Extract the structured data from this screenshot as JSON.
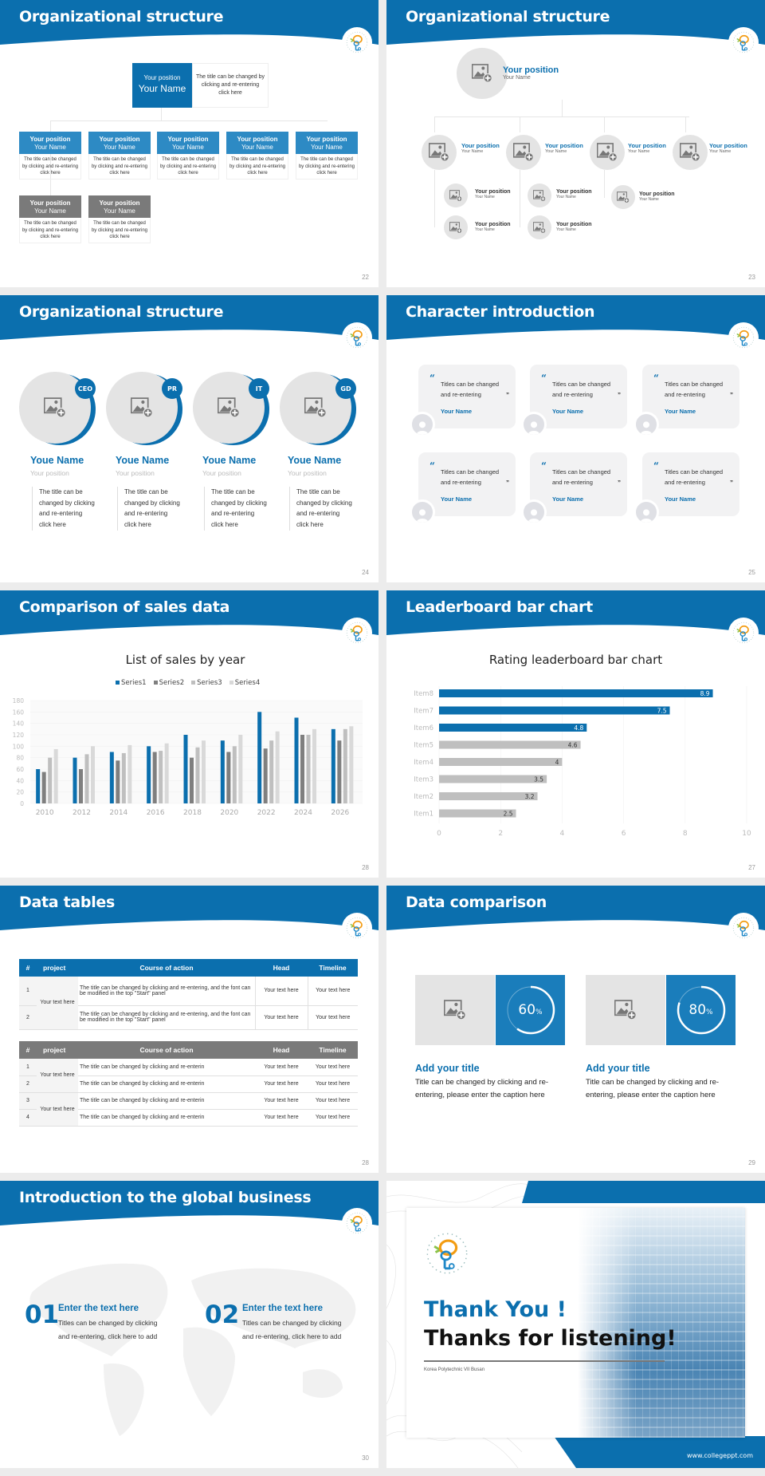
{
  "colors": {
    "brand": "#0b6fae",
    "gray_header": "#7a7a7a",
    "gray_light": "#e4e4e4"
  },
  "slides": [
    {
      "page": "22",
      "title": "Organizational structure",
      "top": {
        "position": "Your position",
        "name": "Your Name",
        "desc": "The title can be changed by clicking and re-entering click here"
      },
      "cards": [
        {
          "position": "Your position",
          "name": "Your Name",
          "desc": "The title can be changed by clicking and re-entering click here"
        },
        {
          "position": "Your position",
          "name": "Your Name",
          "desc": "The title can be changed by clicking and re-entering click here"
        },
        {
          "position": "Your position",
          "name": "Your Name",
          "desc": "The title can be changed by clicking and re-entering click here"
        },
        {
          "position": "Your position",
          "name": "Your Name",
          "desc": "The title can be changed by clicking and re-entering click here"
        },
        {
          "position": "Your position",
          "name": "Your Name",
          "desc": "The title can be changed by clicking and re-entering click here"
        },
        {
          "position": "Your position",
          "name": "Your Name",
          "desc": "The title can be changed by clicking and re-entering click here"
        },
        {
          "position": "Your position",
          "name": "Your Name",
          "desc": "The title can be changed by clicking and re-entering click here"
        }
      ]
    },
    {
      "page": "23",
      "title": "Organizational structure",
      "top": {
        "position": "Your position",
        "name": "Your Name"
      },
      "level2": [
        {
          "position": "Your position",
          "name": "Your Name"
        },
        {
          "position": "Your position",
          "name": "Your Name"
        },
        {
          "position": "Your position",
          "name": "Your Name"
        },
        {
          "position": "Your position",
          "name": "Your Name"
        }
      ],
      "level3": [
        {
          "position": "Your position",
          "name": "Your Name"
        },
        {
          "position": "Your position",
          "name": "Your Name"
        },
        {
          "position": "Your position",
          "name": "Your Name"
        },
        {
          "position": "Your position",
          "name": "Your Name"
        },
        {
          "position": "Your position",
          "name": "Your Name"
        }
      ]
    },
    {
      "page": "24",
      "title": "Organizational structure",
      "members": [
        {
          "tag": "CEO",
          "name": "Youe Name",
          "position": "Your position",
          "desc": "The title can be changed by clicking and re-entering click here"
        },
        {
          "tag": "PR",
          "name": "Youe Name",
          "position": "Your position",
          "desc": "The title can be changed by clicking and re-entering click here"
        },
        {
          "tag": "IT",
          "name": "Youe Name",
          "position": "Your position",
          "desc": "The title can be changed by clicking and re-entering click here"
        },
        {
          "tag": "GD",
          "name": "Youe Name",
          "position": "Your position",
          "desc": "The title can be changed by clicking and re-entering click here"
        }
      ]
    },
    {
      "page": "25",
      "title": "Character introduction",
      "quotes": [
        {
          "text1": "Titles can be changed",
          "text2": "and re-entering",
          "name": "Your Name"
        },
        {
          "text1": "Titles can be changed",
          "text2": "and re-entering",
          "name": "Your Name"
        },
        {
          "text1": "Titles can be changed",
          "text2": "and re-entering",
          "name": "Your Name"
        },
        {
          "text1": "Titles can be changed",
          "text2": "and re-entering",
          "name": "Your Name"
        },
        {
          "text1": "Titles can be changed",
          "text2": "and re-entering",
          "name": "Your Name"
        },
        {
          "text1": "Titles can be changed",
          "text2": "and re-entering",
          "name": "Your Name"
        }
      ]
    },
    {
      "page": "28",
      "title": "Comparison of sales data"
    },
    {
      "page": "27",
      "title": "Leaderboard bar chart"
    },
    {
      "page": "28",
      "title": "Data tables",
      "table1": {
        "headers": [
          "#",
          "project",
          "Course of action",
          "Head",
          "Timeline"
        ],
        "project": "Your text here",
        "rows": [
          {
            "num": "1",
            "action": "The title can be changed by clicking and re-entering, and the font can be modified in the top \"Start\" panel",
            "head": "Your text here",
            "timeline": "Your text here"
          },
          {
            "num": "2",
            "action": "The title can be changed by clicking and re-entering, and the font can be modified in the top \"Start\" panel",
            "head": "Your text here",
            "timeline": "Your text here"
          }
        ]
      },
      "table2": {
        "headers": [
          "#",
          "project",
          "Course of action",
          "Head",
          "Timeline"
        ],
        "projects": [
          "Your text here",
          "Your text here"
        ],
        "rows": [
          {
            "num": "1",
            "action": "The title can be changed by clicking and re-enterin",
            "head": "Your text here",
            "timeline": "Your text here"
          },
          {
            "num": "2",
            "action": "The title can be changed by clicking and re-enterin",
            "head": "Your text here",
            "timeline": "Your text here"
          },
          {
            "num": "3",
            "action": "The title can be changed by clicking and re-enterin",
            "head": "Your text here",
            "timeline": "Your text here"
          },
          {
            "num": "4",
            "action": "The title can be changed by clicking and re-enterin",
            "head": "Your text here",
            "timeline": "Your text here"
          }
        ]
      }
    },
    {
      "page": "29",
      "title": "Data comparison",
      "items": [
        {
          "percent": "60",
          "unit": "%",
          "title": "Add your title",
          "caption": "Title can be changed by clicking and re-entering, please enter the caption here"
        },
        {
          "percent": "80",
          "unit": "%",
          "title": "Add your title",
          "caption": "Title can be changed by clicking and re-entering, please enter the caption here"
        }
      ]
    },
    {
      "page": "30",
      "title": "Introduction to the global business",
      "points": [
        {
          "num": "01",
          "heading": "Enter the text here",
          "text": "Titles can be changed by clicking and re-entering, click here to add"
        },
        {
          "num": "02",
          "heading": "Enter the text here",
          "text": "Titles can be changed by clicking and re-entering, click here to add"
        }
      ]
    },
    {
      "thanks": "Thank You !",
      "listening": "Thanks for listening!",
      "org": "Korea Polytechnic VII Busan",
      "url": "www.collegeppt.com"
    }
  ],
  "chart_data": [
    {
      "type": "bar",
      "title": "List of sales by year",
      "xlabel": "",
      "ylabel": "",
      "categories": [
        "2010",
        "2012",
        "2014",
        "2016",
        "2018",
        "2020",
        "2022",
        "2024",
        "2026"
      ],
      "series": [
        {
          "name": "Series1",
          "color": "#0b6fae",
          "values": [
            60,
            80,
            90,
            100,
            120,
            110,
            160,
            150,
            130
          ]
        },
        {
          "name": "Series2",
          "color": "#7f7f7f",
          "values": [
            55,
            60,
            75,
            90,
            80,
            90,
            96,
            120,
            110
          ]
        },
        {
          "name": "Series3",
          "color": "#bfbfbf",
          "values": [
            80,
            86,
            88,
            92,
            98,
            100,
            110,
            120,
            130
          ]
        },
        {
          "name": "Series4",
          "color": "#d9d9d9",
          "values": [
            95,
            100,
            102,
            105,
            110,
            120,
            126,
            130,
            135
          ]
        }
      ],
      "ylim": [
        0,
        180
      ],
      "yticks": [
        "0",
        "20",
        "40",
        "60",
        "80",
        "100",
        "120",
        "140",
        "160",
        "180"
      ],
      "legend": "top",
      "grid": true
    },
    {
      "type": "bar",
      "orientation": "horizontal",
      "title": "Rating leaderboard bar chart",
      "categories": [
        "Item8",
        "Item7",
        "Item6",
        "Item5",
        "Item4",
        "Item3",
        "Item2",
        "Item1"
      ],
      "values": [
        8.9,
        7.5,
        4.8,
        4.6,
        4,
        3.5,
        3.2,
        2.5
      ],
      "labels": [
        "8.9",
        "7.5",
        "4.8",
        "4.6",
        "4",
        "3.5",
        "3.2",
        "2.5"
      ],
      "highlight_top": 3,
      "xlim": [
        0,
        10
      ],
      "xticks": [
        "0",
        "2",
        "4",
        "6",
        "8",
        "10"
      ],
      "grid": true
    }
  ]
}
